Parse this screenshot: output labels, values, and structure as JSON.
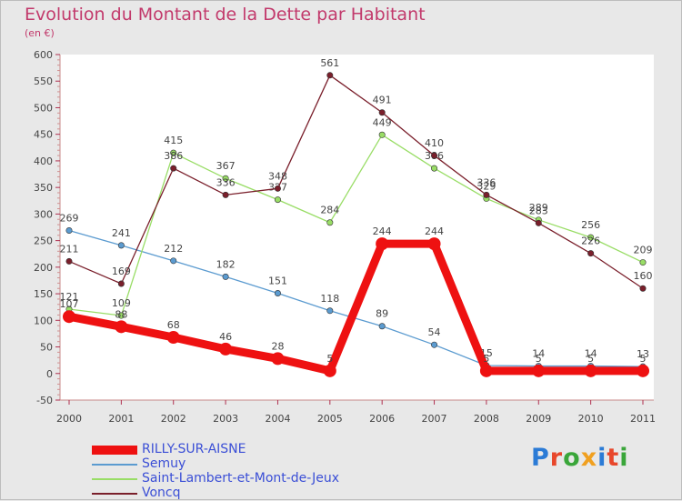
{
  "title": "Evolution du Montant de la Dette par Habitant",
  "unit": "(en €)",
  "logo_text": "Proxiti",
  "chart_data": {
    "type": "line",
    "title": "Evolution du Montant de la Dette par Habitant",
    "ylabel": "(en €)",
    "xlabel": "",
    "ylim": [
      -50,
      600
    ],
    "yticks": [
      -50,
      0,
      50,
      100,
      150,
      200,
      250,
      300,
      350,
      400,
      450,
      500,
      550,
      600
    ],
    "grid": false,
    "legend_position": "bottom-left",
    "x": [
      "2000",
      "2001",
      "2002",
      "2003",
      "2004",
      "2005",
      "2006",
      "2007",
      "2008",
      "2009",
      "2010",
      "2011"
    ],
    "series": [
      {
        "name": "RILLY-SUR-AISNE",
        "color": "#ee1111",
        "values": [
          107,
          88,
          68,
          46,
          28,
          5,
          244,
          244,
          5,
          5,
          5,
          5
        ]
      },
      {
        "name": "Semuy",
        "color": "#5b9bd0",
        "values": [
          269,
          241,
          212,
          182,
          151,
          118,
          89,
          54,
          15,
          14,
          14,
          13
        ]
      },
      {
        "name": "Saint-Lambert-et-Mont-de-Jeux",
        "color": "#99dd66",
        "values": [
          121,
          109,
          415,
          367,
          327,
          284,
          449,
          386,
          329,
          289,
          256,
          209
        ]
      },
      {
        "name": "Voncq",
        "color": "#7a1f2b",
        "values": [
          211,
          169,
          386,
          336,
          348,
          561,
          491,
          410,
          336,
          283,
          226,
          160
        ]
      }
    ]
  }
}
